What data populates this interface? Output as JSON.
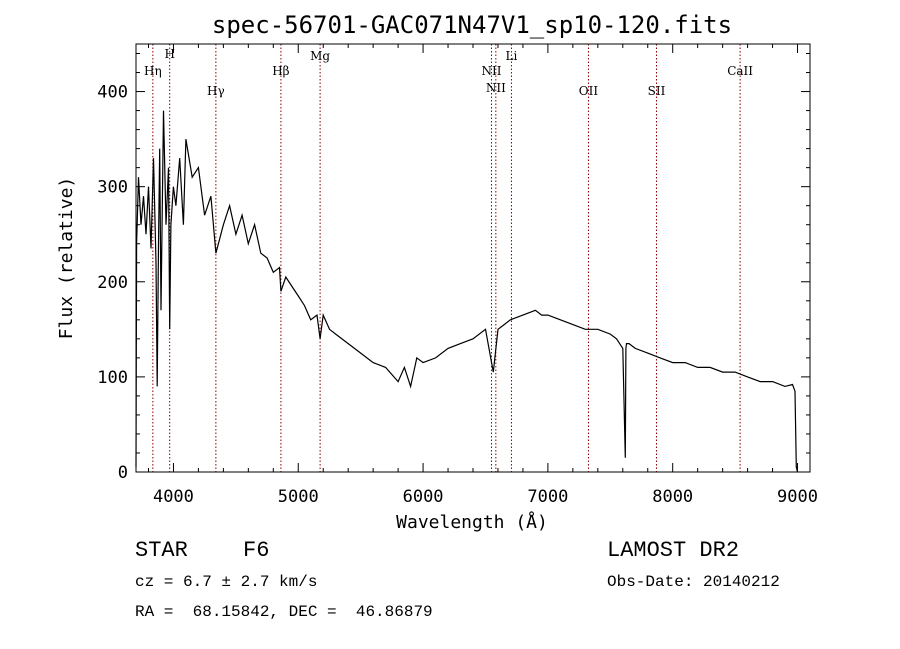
{
  "chart_data": {
    "type": "line",
    "title": "spec-56701-GAC071N47V1_sp10-120.fits",
    "xlabel": "Wavelength (Å)",
    "ylabel": "Flux (relative)",
    "xlim": [
      3700,
      9100
    ],
    "ylim": [
      0,
      450
    ],
    "xticks": [
      4000,
      5000,
      6000,
      7000,
      8000,
      9000
    ],
    "yticks": [
      0,
      100,
      200,
      300,
      400
    ],
    "grid": false,
    "series": [
      {
        "color": "#000000",
        "x": [
          3700,
          3705,
          3720,
          3740,
          3760,
          3780,
          3800,
          3820,
          3840,
          3860,
          3870,
          3880,
          3890,
          3900,
          3920,
          3940,
          3960,
          3970,
          3980,
          4000,
          4020,
          4050,
          4080,
          4100,
          4150,
          4200,
          4250,
          4300,
          4340,
          4400,
          4450,
          4500,
          4550,
          4600,
          4650,
          4700,
          4750,
          4800,
          4850,
          4861,
          4900,
          4950,
          5000,
          5050,
          5100,
          5150,
          5175,
          5200,
          5250,
          5300,
          5400,
          5500,
          5600,
          5700,
          5800,
          5850,
          5900,
          5950,
          6000,
          6100,
          6200,
          6300,
          6400,
          6500,
          6563,
          6600,
          6650,
          6700,
          6800,
          6900,
          6950,
          7000,
          7100,
          7200,
          7300,
          7400,
          7500,
          7550,
          7600,
          7620,
          7625,
          7630,
          7650,
          7700,
          7800,
          7900,
          8000,
          8100,
          8200,
          8300,
          8400,
          8500,
          8600,
          8700,
          8800,
          8900,
          8960,
          8980,
          8990,
          9000
        ],
        "y": [
          5,
          240,
          310,
          260,
          290,
          250,
          300,
          235,
          330,
          220,
          90,
          240,
          340,
          170,
          380,
          260,
          320,
          150,
          260,
          300,
          280,
          330,
          260,
          350,
          310,
          320,
          270,
          290,
          230,
          260,
          280,
          250,
          270,
          240,
          260,
          230,
          225,
          210,
          215,
          190,
          205,
          195,
          185,
          175,
          160,
          165,
          140,
          165,
          150,
          145,
          135,
          125,
          115,
          110,
          95,
          110,
          90,
          120,
          115,
          120,
          130,
          135,
          140,
          150,
          105,
          150,
          155,
          160,
          165,
          170,
          165,
          165,
          160,
          155,
          150,
          150,
          145,
          140,
          130,
          15,
          130,
          135,
          135,
          130,
          125,
          120,
          115,
          115,
          110,
          110,
          105,
          105,
          100,
          95,
          95,
          90,
          92,
          85,
          5,
          0
        ]
      }
    ],
    "lines": [
      {
        "label": "Hη",
        "x": 3835
      },
      {
        "label": "H",
        "x": 3970
      },
      {
        "label": "Hγ",
        "x": 4340
      },
      {
        "label": "Hβ",
        "x": 4861
      },
      {
        "label": "Mg",
        "x": 5175
      },
      {
        "label": "NII",
        "x": 6548
      },
      {
        "label": "NII",
        "x": 6583
      },
      {
        "label": "Li",
        "x": 6708
      },
      {
        "label": "OII",
        "x": 7325
      },
      {
        "label": "SII",
        "x": 7870
      },
      {
        "label": "CaII",
        "x": 8540
      }
    ],
    "line_color": "#8b0000"
  },
  "info": {
    "object_class": "STAR",
    "subclass": "F6",
    "survey": "LAMOST DR2",
    "redshift": "cz = 6.7 ± 2.7 km/s",
    "obs_date": "Obs-Date: 20140212",
    "coords": "RA =  68.15842, DEC =  46.86879"
  }
}
